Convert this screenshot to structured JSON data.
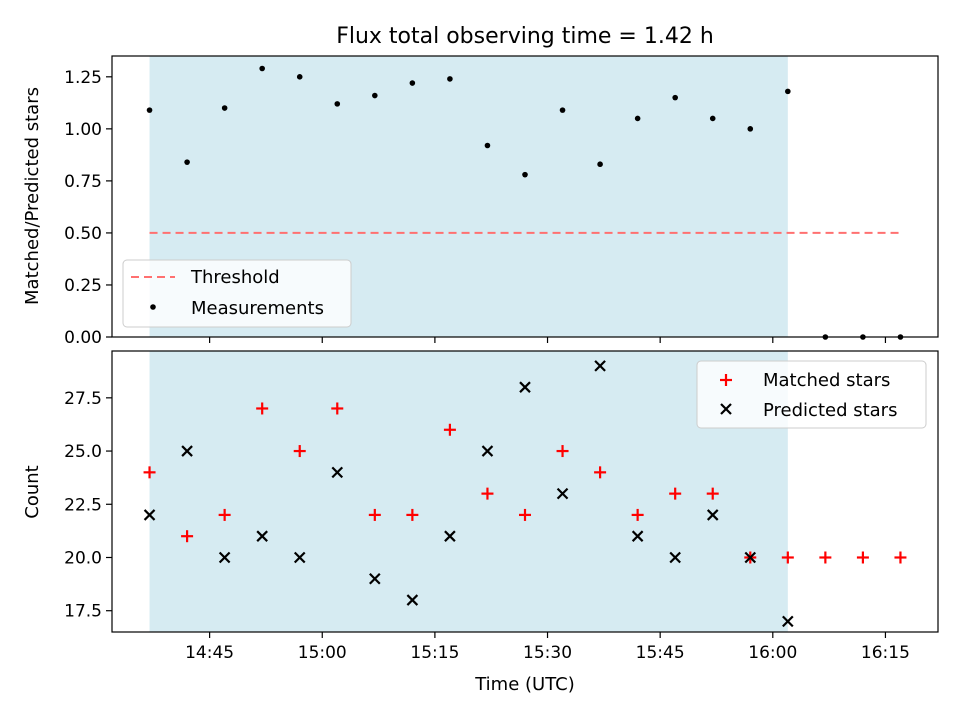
{
  "chart_data": [
    {
      "type": "scatter",
      "title": "Flux total observing time = 1.42 h",
      "xlabel": "",
      "ylabel": "Matched/Predicted stars",
      "xlim": [
        "14:32",
        "16:22"
      ],
      "ylim": [
        0.0,
        1.35
      ],
      "yticks": [
        0.0,
        0.25,
        0.5,
        0.75,
        1.0,
        1.25
      ],
      "ytick_labels": [
        "0.00",
        "0.25",
        "0.50",
        "0.75",
        "1.00",
        "1.25"
      ],
      "shaded_interval": [
        "14:37",
        "16:02"
      ],
      "shade_color": "#add8e6",
      "threshold": {
        "name": "Threshold",
        "value": 0.5,
        "x_start": "14:37",
        "x_end": "16:17",
        "color": "#ff7070"
      },
      "series": [
        {
          "name": "Measurements",
          "color": "#000000",
          "x": [
            "14:37",
            "14:42",
            "14:47",
            "14:52",
            "14:57",
            "15:02",
            "15:07",
            "15:12",
            "15:17",
            "15:22",
            "15:27",
            "15:32",
            "15:37",
            "15:42",
            "15:47",
            "15:52",
            "15:57",
            "16:02",
            "16:07",
            "16:12",
            "16:17"
          ],
          "values": [
            1.09,
            0.84,
            1.1,
            1.29,
            1.25,
            1.12,
            1.16,
            1.22,
            1.24,
            0.92,
            0.78,
            1.09,
            0.83,
            1.05,
            1.15,
            1.05,
            1.0,
            1.18,
            0.0,
            0.0,
            0.0
          ]
        }
      ],
      "legend": {
        "position": "lower-left",
        "entries": [
          "Threshold",
          "Measurements"
        ]
      }
    },
    {
      "type": "scatter",
      "title": "",
      "xlabel": "Time (UTC)",
      "ylabel": "Count",
      "xlim": [
        "14:32",
        "16:22"
      ],
      "ylim": [
        16.5,
        29.7
      ],
      "xticks": [
        "14:45",
        "15:00",
        "15:15",
        "15:30",
        "15:45",
        "16:00",
        "16:15"
      ],
      "yticks": [
        17.5,
        20.0,
        22.5,
        25.0,
        27.5
      ],
      "ytick_labels": [
        "17.5",
        "20.0",
        "22.5",
        "25.0",
        "27.5"
      ],
      "shaded_interval": [
        "14:37",
        "16:02"
      ],
      "shade_color": "#add8e6",
      "series": [
        {
          "name": "Matched stars",
          "marker": "+",
          "color": "#ff0000",
          "x": [
            "14:37",
            "14:42",
            "14:47",
            "14:52",
            "14:57",
            "15:02",
            "15:07",
            "15:12",
            "15:17",
            "15:22",
            "15:27",
            "15:32",
            "15:37",
            "15:42",
            "15:47",
            "15:52",
            "15:57",
            "16:02",
            "16:07",
            "16:12",
            "16:17"
          ],
          "values": [
            24,
            21,
            22,
            27,
            25,
            27,
            22,
            22,
            26,
            23,
            22,
            25,
            24,
            22,
            23,
            23,
            20,
            20,
            20,
            20,
            20
          ]
        },
        {
          "name": "Predicted stars",
          "marker": "x",
          "color": "#000000",
          "x": [
            "14:37",
            "14:42",
            "14:47",
            "14:52",
            "14:57",
            "15:02",
            "15:07",
            "15:12",
            "15:17",
            "15:22",
            "15:27",
            "15:32",
            "15:37",
            "15:42",
            "15:47",
            "15:52",
            "15:57",
            "16:02"
          ],
          "values": [
            22,
            25,
            20,
            21,
            20,
            24,
            19,
            18,
            21,
            25,
            28,
            23,
            29,
            21,
            20,
            22,
            20,
            17
          ]
        }
      ],
      "legend": {
        "position": "top-right",
        "entries": [
          "Matched stars",
          "Predicted stars"
        ]
      }
    }
  ]
}
